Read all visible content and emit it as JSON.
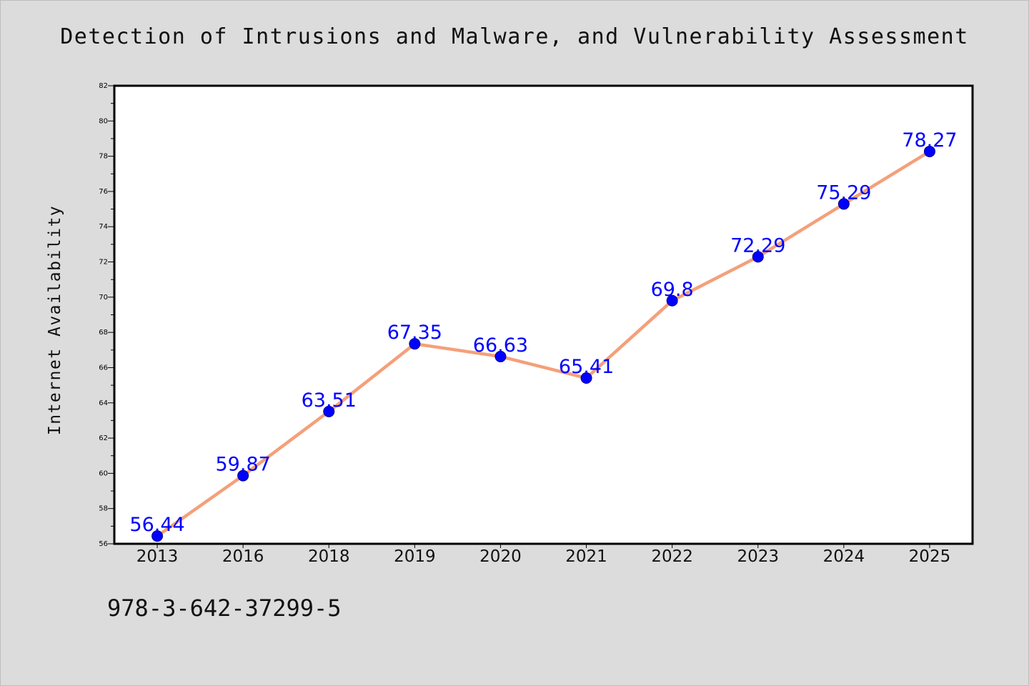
{
  "chart_data": {
    "type": "line",
    "title": "Detection of Intrusions and Malware, and Vulnerability Assessment",
    "xlabel": "",
    "ylabel": "Internet Availability",
    "categories": [
      "2013",
      "2016",
      "2018",
      "2019",
      "2020",
      "2021",
      "2022",
      "2023",
      "2024",
      "2025"
    ],
    "series": [
      {
        "values": [
          56.44,
          59.87,
          63.51,
          67.35,
          66.63,
          65.41,
          69.8,
          72.29,
          75.29,
          78.27
        ],
        "labels": [
          "56.44",
          "59.87",
          "63.51",
          "67.35",
          "66.63",
          "65.41",
          "69.8",
          "72.29",
          "75.29",
          "78.27"
        ]
      }
    ],
    "ylim": [
      56,
      82
    ],
    "yticks": [
      "56",
      "58",
      "60",
      "62",
      "64",
      "66",
      "68",
      "70",
      "72",
      "74",
      "76",
      "78",
      "80",
      "82"
    ],
    "grid": false,
    "legend": "none",
    "colors": {
      "line": "#f4a07a",
      "marker": "#0000ff",
      "data_label": "#0000ff",
      "plot_background": "#ffffff",
      "figure_background": "#dcdcdc"
    }
  },
  "footer_text": "978-3-642-37299-5"
}
